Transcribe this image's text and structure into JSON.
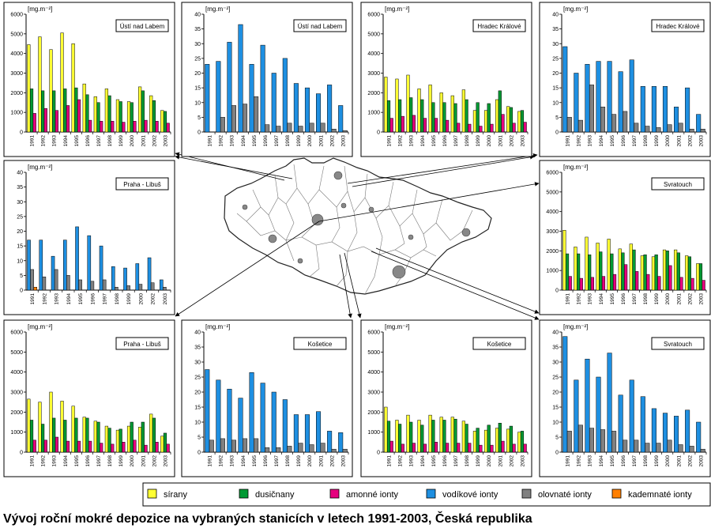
{
  "caption": "Vývoj roční mokré depozice na vybraných stanicích  v letech 1991-2003, Česká republika",
  "unit_label": "[mg.m⁻²]",
  "legend": [
    {
      "label": "sírany",
      "color": "#ffff33"
    },
    {
      "label": "dusičnany",
      "color": "#009933"
    },
    {
      "label": "amonné ionty",
      "color": "#e6007e"
    },
    {
      "label": "vodíkové ionty",
      "color": "#1e8fe1"
    },
    {
      "label": "olovnaté ionty",
      "color": "#808080"
    },
    {
      "label": "kademnaté ionty",
      "color": "#ff7f00"
    }
  ],
  "chart_data": [
    {
      "type": "bar",
      "station": "Ústí nad Labem",
      "ylabel": "[mg.m⁻²]",
      "ylim": [
        0,
        6000
      ],
      "yticks": [
        0,
        1000,
        2000,
        3000,
        4000,
        5000,
        6000
      ],
      "categories": [
        "1991",
        "1992",
        "1993",
        "1994",
        "1995",
        "1996",
        "1997",
        "1998",
        "1999",
        "2000",
        "2001",
        "2002",
        "2003"
      ],
      "series": [
        {
          "name": "sírany",
          "values": [
            4450,
            4850,
            4200,
            5050,
            4500,
            2450,
            1800,
            2200,
            1650,
            1550,
            2300,
            1850,
            1100
          ]
        },
        {
          "name": "dusičnany",
          "values": [
            2200,
            2100,
            2100,
            2200,
            2250,
            1900,
            1500,
            1850,
            1550,
            1500,
            2100,
            1600,
            1050
          ]
        },
        {
          "name": "amonné ionty",
          "values": [
            950,
            1200,
            1100,
            1350,
            1650,
            600,
            550,
            550,
            500,
            550,
            600,
            550,
            450
          ]
        }
      ]
    },
    {
      "type": "bar",
      "station": "Ústí nad Labem",
      "ylabel": "[mg.m⁻²]",
      "ylim": [
        0,
        40
      ],
      "yticks": [
        0,
        5,
        10,
        15,
        20,
        25,
        30,
        35,
        40
      ],
      "categories": [
        "1991",
        "1992",
        "1993",
        "1994",
        "1995",
        "1996",
        "1997",
        "1998",
        "1999",
        "2000",
        "2001",
        "2002",
        "2003"
      ],
      "series": [
        {
          "name": "vodíkové ionty",
          "values": [
            23,
            24,
            30.5,
            36.5,
            23,
            29.5,
            20,
            25,
            16.5,
            15,
            13,
            16,
            9
          ]
        },
        {
          "name": "olovnaté ionty",
          "values": [
            0,
            5,
            9,
            9.5,
            12,
            2.5,
            2,
            3,
            2,
            3,
            3,
            1,
            0.5
          ]
        }
      ]
    },
    {
      "type": "bar",
      "station": "Hradec Králové",
      "ylabel": "[mg.m⁻²]",
      "ylim": [
        0,
        6000
      ],
      "yticks": [
        0,
        1000,
        2000,
        3000,
        4000,
        5000,
        6000
      ],
      "categories": [
        "1991",
        "1992",
        "1993",
        "1994",
        "1995",
        "1996",
        "1997",
        "1998",
        "1999",
        "2000",
        "2001",
        "2002",
        "2003"
      ],
      "series": [
        {
          "name": "sírany",
          "values": [
            2800,
            2700,
            2900,
            2200,
            2400,
            2000,
            1850,
            2150,
            1100,
            1100,
            1650,
            1300,
            1050
          ]
        },
        {
          "name": "dusičnany",
          "values": [
            1600,
            1650,
            1750,
            1650,
            1500,
            1500,
            1450,
            1650,
            1500,
            1450,
            2100,
            1250,
            1100
          ]
        },
        {
          "name": "amonné ionty",
          "values": [
            700,
            800,
            850,
            700,
            700,
            600,
            450,
            400,
            300,
            400,
            900,
            450,
            500
          ]
        }
      ]
    },
    {
      "type": "bar",
      "station": "Hradec Králové",
      "ylabel": "[mg.m⁻²]",
      "ylim": [
        0,
        40
      ],
      "yticks": [
        0,
        5,
        10,
        15,
        20,
        25,
        30,
        35,
        40
      ],
      "categories": [
        "1991",
        "1992",
        "1993",
        "1994",
        "1995",
        "1996",
        "1997",
        "1998",
        "1999",
        "2000",
        "2001",
        "2002",
        "2003"
      ],
      "series": [
        {
          "name": "vodíkové ionty",
          "values": [
            29,
            20,
            23,
            24,
            24,
            20.5,
            24.5,
            15.5,
            15.5,
            15.5,
            8.5,
            15,
            6
          ]
        },
        {
          "name": "olovnaté ionty",
          "values": [
            5,
            4,
            16,
            8.5,
            6,
            7,
            3,
            2,
            1.5,
            2.5,
            3,
            1,
            1
          ]
        }
      ]
    },
    {
      "type": "bar",
      "station": "Praha - Libuš",
      "ylabel": "[mg.m⁻²]",
      "ylim": [
        0,
        40
      ],
      "yticks": [
        0,
        5,
        10,
        15,
        20,
        25,
        30,
        35,
        40
      ],
      "categories": [
        "1991",
        "1992",
        "1993",
        "1994",
        "1995",
        "1996",
        "1997",
        "1998",
        "1999",
        "2000",
        "2002",
        "2003"
      ],
      "series": [
        {
          "name": "vodíkové ionty",
          "values": [
            17,
            17,
            11.5,
            17,
            21.5,
            18.5,
            15,
            8,
            7.5,
            9,
            11,
            3.5
          ]
        },
        {
          "name": "olovnaté ionty",
          "values": [
            7,
            4.5,
            7,
            5,
            3.5,
            3,
            3.5,
            1,
            1.5,
            2,
            2.5,
            1
          ]
        },
        {
          "name": "kademnaté ionty",
          "values": [
            1,
            0,
            0,
            0,
            0,
            0,
            0,
            0,
            0,
            0,
            0,
            0
          ]
        }
      ]
    },
    {
      "type": "bar",
      "station": "Svratouch",
      "ylabel": "[mg.m⁻²]",
      "ylim": [
        0,
        6000
      ],
      "yticks": [
        0,
        1000,
        2000,
        3000,
        4000,
        5000,
        6000
      ],
      "categories": [
        "1991",
        "1992",
        "1993",
        "1994",
        "1995",
        "1996",
        "1997",
        "1998",
        "1999",
        "2000",
        "2001",
        "2002",
        "2003"
      ],
      "series": [
        {
          "name": "sírany",
          "values": [
            3050,
            2200,
            2700,
            2400,
            2600,
            2100,
            2350,
            1750,
            1700,
            2050,
            2050,
            1750,
            1350
          ]
        },
        {
          "name": "dusičnany",
          "values": [
            1850,
            1850,
            1800,
            1950,
            1850,
            1900,
            2050,
            1800,
            1800,
            2000,
            1900,
            1700,
            1350
          ]
        },
        {
          "name": "amonné ionty",
          "values": [
            700,
            600,
            650,
            700,
            800,
            1300,
            950,
            800,
            700,
            1250,
            650,
            600,
            500
          ]
        }
      ]
    },
    {
      "type": "bar",
      "station": "Praha - Libuš",
      "ylabel": "[mg.m⁻²]",
      "ylim": [
        0,
        6000
      ],
      "yticks": [
        0,
        1000,
        2000,
        3000,
        4000,
        5000,
        6000
      ],
      "categories": [
        "1991",
        "1992",
        "1993",
        "1994",
        "1995",
        "1996",
        "1997",
        "1998",
        "1999",
        "2000",
        "2001",
        "2002",
        "2003"
      ],
      "series": [
        {
          "name": "sírany",
          "values": [
            2650,
            2500,
            3000,
            2550,
            2300,
            1750,
            1550,
            1300,
            1100,
            1300,
            1250,
            1900,
            800
          ]
        },
        {
          "name": "dusičnany",
          "values": [
            1600,
            1400,
            1700,
            1600,
            1700,
            1700,
            1500,
            1200,
            1150,
            1500,
            1500,
            1700,
            950
          ]
        },
        {
          "name": "amonné ionty",
          "values": [
            600,
            600,
            750,
            550,
            550,
            550,
            450,
            400,
            500,
            600,
            350,
            500,
            400
          ]
        }
      ]
    },
    {
      "type": "bar",
      "station": "Košetice",
      "ylabel": "[mg.m⁻²]",
      "ylim": [
        0,
        40
      ],
      "yticks": [
        0,
        5,
        10,
        15,
        20,
        25,
        30,
        35,
        40
      ],
      "categories": [
        "1991",
        "1992",
        "1993",
        "1994",
        "1995",
        "1996",
        "1997",
        "1998",
        "1999",
        "2000",
        "2001",
        "2002",
        "2003"
      ],
      "series": [
        {
          "name": "vodíkové ionty",
          "values": [
            27.5,
            24,
            21,
            18,
            26.5,
            23,
            20,
            17.5,
            12.5,
            12.5,
            13.5,
            7,
            6.5
          ]
        },
        {
          "name": "olovnaté ionty",
          "values": [
            4,
            4.5,
            4,
            4.5,
            4.5,
            1.5,
            1.5,
            2,
            3,
            2.5,
            3,
            1,
            1
          ]
        }
      ]
    },
    {
      "type": "bar",
      "station": "Košetice",
      "ylabel": "[mg.m⁻²]",
      "ylim": [
        0,
        6000
      ],
      "yticks": [
        0,
        1000,
        2000,
        3000,
        4000,
        5000,
        6000
      ],
      "categories": [
        "1991",
        "1992",
        "1993",
        "1994",
        "1995",
        "1996",
        "1997",
        "1998",
        "1999",
        "2000",
        "2001",
        "2002",
        "2003"
      ],
      "series": [
        {
          "name": "sírany",
          "values": [
            2250,
            1600,
            1850,
            1600,
            1850,
            1750,
            1750,
            1550,
            1050,
            1100,
            1200,
            1150,
            1000
          ]
        },
        {
          "name": "dusičnany",
          "values": [
            1550,
            1400,
            1500,
            1350,
            1600,
            1600,
            1650,
            1400,
            1200,
            1350,
            1450,
            1300,
            1050
          ]
        },
        {
          "name": "amonné ionty",
          "values": [
            550,
            400,
            450,
            400,
            500,
            450,
            450,
            450,
            350,
            350,
            550,
            400,
            400
          ]
        }
      ]
    },
    {
      "type": "bar",
      "station": "Svratouch",
      "ylabel": "[mg.m⁻²]",
      "ylim": [
        0,
        40
      ],
      "yticks": [
        0,
        5,
        10,
        15,
        20,
        25,
        30,
        35,
        40
      ],
      "categories": [
        "1991",
        "1992",
        "1993",
        "1994",
        "1995",
        "1996",
        "1997",
        "1998",
        "1999",
        "2000",
        "2001",
        "2002",
        "2003"
      ],
      "series": [
        {
          "name": "vodíkové ionty",
          "values": [
            38.5,
            24,
            31,
            25,
            33,
            19,
            24,
            18.5,
            14.5,
            13,
            12,
            14,
            10
          ]
        },
        {
          "name": "olovnaté ionty",
          "values": [
            7,
            9,
            8,
            7.5,
            7,
            4,
            4,
            3,
            3,
            4,
            2.5,
            2,
            1
          ]
        }
      ]
    }
  ]
}
